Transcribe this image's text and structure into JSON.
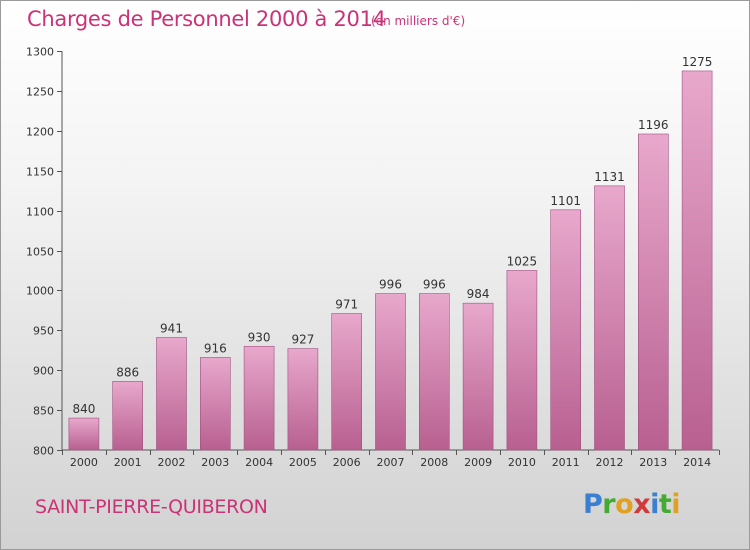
{
  "header": {
    "title": "Charges de Personnel 2000 à 2014",
    "subtitle": "(en milliers d'€)"
  },
  "footer": {
    "commune": "SAINT-PIERRE-QUIBERON",
    "logo_letters": [
      {
        "char": "P",
        "color": "#3a7fd0"
      },
      {
        "char": "r",
        "color": "#44aa33"
      },
      {
        "char": "o",
        "color": "#e0a020"
      },
      {
        "char": "x",
        "color": "#d03a3a"
      },
      {
        "char": "i",
        "color": "#3a7fd0"
      },
      {
        "char": "t",
        "color": "#44aa33"
      },
      {
        "char": "i",
        "color": "#e0a020"
      }
    ]
  },
  "chart_data": {
    "type": "bar",
    "categories": [
      "2000",
      "2001",
      "2002",
      "2003",
      "2004",
      "2005",
      "2006",
      "2007",
      "2008",
      "2009",
      "2010",
      "2011",
      "2012",
      "2013",
      "2014"
    ],
    "values": [
      840,
      886,
      941,
      916,
      930,
      927,
      971,
      996,
      996,
      984,
      1025,
      1101,
      1131,
      1196,
      1275
    ],
    "ylim": [
      800,
      1300
    ],
    "yticks": [
      800,
      850,
      900,
      950,
      1000,
      1050,
      1100,
      1150,
      1200,
      1250,
      1300
    ],
    "grid": false,
    "bar_color_top": "#e8a8cc",
    "bar_color_bottom": "#b86090"
  }
}
